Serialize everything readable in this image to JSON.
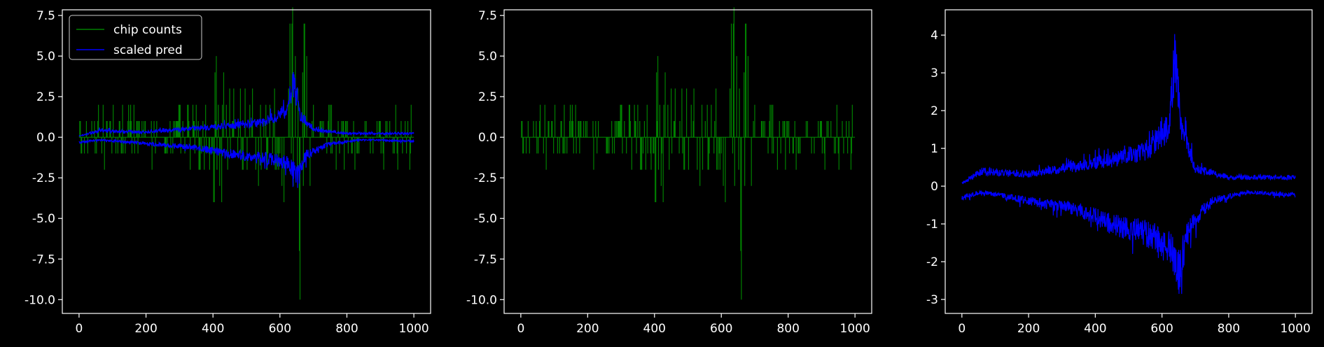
{
  "background": "#000000",
  "chart_data": [
    {
      "type": "line",
      "title": "",
      "xlabel": "",
      "ylabel": "",
      "xlim": [
        -50,
        1050
      ],
      "ylim": [
        -10.85,
        7.85
      ],
      "xticks": [
        0,
        200,
        400,
        600,
        800,
        1000
      ],
      "yticks": [
        -10.0,
        -7.5,
        -5.0,
        -2.5,
        0.0,
        2.5,
        5.0,
        7.5
      ],
      "grid": false,
      "legend": {
        "placement": "top-left",
        "entries": [
          "chip counts",
          "scaled pred"
        ]
      },
      "series": [
        {
          "name": "chip counts",
          "kind": "counts",
          "color": "#008000",
          "x_range": [
            0,
            1000
          ],
          "abs_profile": [
            [
              0,
              1
            ],
            [
              100,
              2
            ],
            [
              250,
              1.5
            ],
            [
              350,
              2
            ],
            [
              400,
              5
            ],
            [
              450,
              4
            ],
            [
              500,
              3
            ],
            [
              550,
              4
            ],
            [
              600,
              3
            ],
            [
              630,
              7
            ],
            [
              660,
              10
            ],
            [
              700,
              3
            ],
            [
              750,
              2
            ],
            [
              850,
              1.5
            ],
            [
              1000,
              2
            ]
          ],
          "extremes": [
            {
              "x": 630,
              "y": 7
            },
            {
              "x": 660,
              "y": -10
            },
            {
              "x": 410,
              "y": 5
            }
          ]
        },
        {
          "name": "scaled pred",
          "kind": "envelope",
          "color": "#0000ff",
          "x_range": [
            0,
            1000
          ],
          "upper_profile": [
            [
              0,
              0.1
            ],
            [
              60,
              0.5
            ],
            [
              200,
              0.4
            ],
            [
              350,
              0.7
            ],
            [
              450,
              0.9
            ],
            [
              550,
              1.2
            ],
            [
              620,
              2
            ],
            [
              640,
              4.3
            ],
            [
              660,
              1.8
            ],
            [
              700,
              0.6
            ],
            [
              800,
              0.3
            ],
            [
              1000,
              0.3
            ]
          ],
          "lower_profile": [
            [
              0,
              -0.4
            ],
            [
              60,
              -0.2
            ],
            [
              200,
              -0.5
            ],
            [
              350,
              -0.8
            ],
            [
              450,
              -1.3
            ],
            [
              550,
              -1.6
            ],
            [
              620,
              -2
            ],
            [
              650,
              -3
            ],
            [
              680,
              -1.4
            ],
            [
              750,
              -0.5
            ],
            [
              850,
              -0.2
            ],
            [
              1000,
              -0.3
            ]
          ]
        }
      ]
    },
    {
      "type": "line",
      "title": "",
      "xlabel": "",
      "ylabel": "",
      "xlim": [
        -50,
        1050
      ],
      "ylim": [
        -10.85,
        7.85
      ],
      "xticks": [
        0,
        200,
        400,
        600,
        800,
        1000
      ],
      "yticks": [
        -10.0,
        -7.5,
        -5.0,
        -2.5,
        0.0,
        2.5,
        5.0,
        7.5
      ],
      "grid": false,
      "series": [
        {
          "name": "",
          "kind": "counts",
          "color": "#008000",
          "x_range": [
            0,
            1000
          ],
          "abs_profile": [
            [
              0,
              1
            ],
            [
              100,
              2
            ],
            [
              250,
              1.5
            ],
            [
              350,
              2
            ],
            [
              400,
              5
            ],
            [
              450,
              4
            ],
            [
              500,
              3
            ],
            [
              550,
              4
            ],
            [
              600,
              3
            ],
            [
              630,
              7
            ],
            [
              660,
              10
            ],
            [
              700,
              3
            ],
            [
              750,
              2
            ],
            [
              850,
              1.5
            ],
            [
              1000,
              2
            ]
          ],
          "extremes": [
            {
              "x": 630,
              "y": 7
            },
            {
              "x": 660,
              "y": -10
            },
            {
              "x": 410,
              "y": 5
            }
          ]
        }
      ]
    },
    {
      "type": "line",
      "title": "",
      "xlabel": "",
      "ylabel": "",
      "xlim": [
        -50,
        1050
      ],
      "ylim": [
        -3.37,
        4.67
      ],
      "xticks": [
        0,
        200,
        400,
        600,
        800,
        1000
      ],
      "yticks": [
        -3,
        -2,
        -1,
        0,
        1,
        2,
        3,
        4
      ],
      "grid": false,
      "series": [
        {
          "name": "",
          "kind": "envelope",
          "color": "#0000ff",
          "x_range": [
            0,
            1000
          ],
          "upper_profile": [
            [
              0,
              0.1
            ],
            [
              60,
              0.5
            ],
            [
              200,
              0.4
            ],
            [
              350,
              0.7
            ],
            [
              450,
              0.9
            ],
            [
              550,
              1.2
            ],
            [
              620,
              2
            ],
            [
              640,
              4.3
            ],
            [
              660,
              1.8
            ],
            [
              700,
              0.6
            ],
            [
              800,
              0.3
            ],
            [
              1000,
              0.3
            ]
          ],
          "lower_profile": [
            [
              0,
              -0.4
            ],
            [
              60,
              -0.2
            ],
            [
              200,
              -0.5
            ],
            [
              350,
              -0.8
            ],
            [
              450,
              -1.3
            ],
            [
              550,
              -1.6
            ],
            [
              620,
              -2
            ],
            [
              650,
              -3
            ],
            [
              680,
              -1.4
            ],
            [
              750,
              -0.5
            ],
            [
              850,
              -0.2
            ],
            [
              1000,
              -0.3
            ]
          ]
        }
      ]
    }
  ]
}
